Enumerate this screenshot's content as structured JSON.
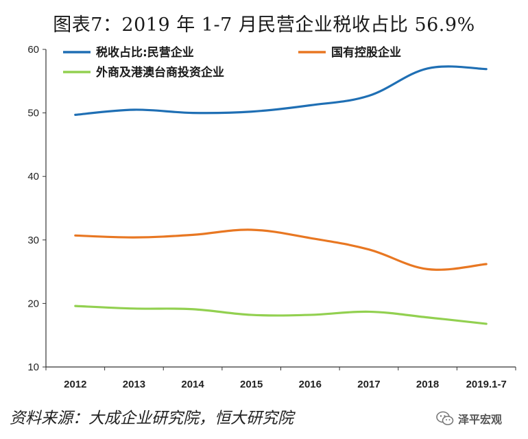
{
  "title": "图表7：2019 年 1-7 月民营企业税收占比 56.9%",
  "source": "资料来源：大成企业研究院，恒大研究院",
  "watermark": "泽平宏观",
  "chart_data": {
    "type": "line",
    "categories": [
      "2012",
      "2013",
      "2014",
      "2015",
      "2016",
      "2017",
      "2018",
      "2019.1-7"
    ],
    "ylim": [
      10,
      60
    ],
    "yticks": [
      10,
      20,
      30,
      40,
      50,
      60
    ],
    "grid": false,
    "legend_position": "top-left",
    "series": [
      {
        "name": "税收占比:民营企业",
        "color": "#1f6fb4",
        "values": [
          49.7,
          50.5,
          50.0,
          50.2,
          51.2,
          52.7,
          57.0,
          56.9
        ]
      },
      {
        "name": "国有控股企业",
        "color": "#e87722",
        "values": [
          30.7,
          30.4,
          30.8,
          31.6,
          30.3,
          28.5,
          25.4,
          26.2
        ]
      },
      {
        "name": "外商及港澳台商投资企业",
        "color": "#92d050",
        "values": [
          19.6,
          19.2,
          19.1,
          18.2,
          18.2,
          18.7,
          17.8,
          16.8
        ]
      }
    ]
  }
}
